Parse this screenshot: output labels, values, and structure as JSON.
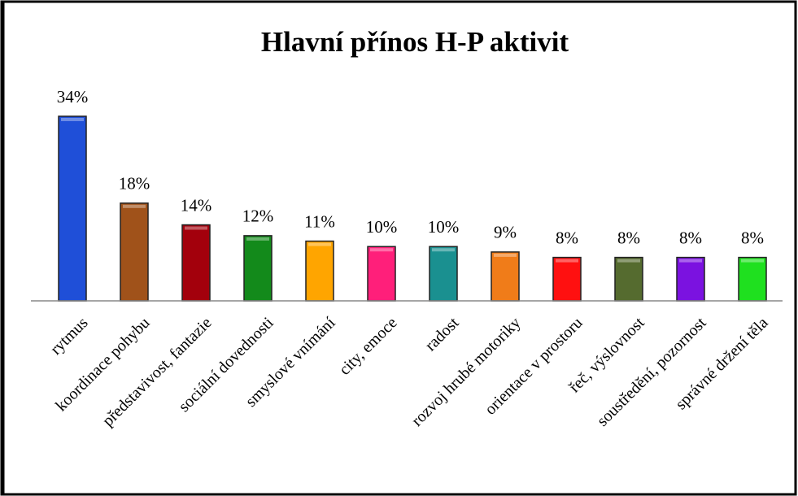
{
  "chart_data": {
    "type": "bar",
    "title": "Hlavní přínos H-P aktivit",
    "categories": [
      "rytmus",
      "koordinace pohybu",
      "představivost, fantazie",
      "sociální dovednosti",
      "smyslové vnímání",
      "city, emoce",
      "radost",
      "rozvoj hrubé motoriky",
      "orientace v prostoru",
      "řeč, výslovnost",
      "soustředění, pozornost",
      "správné držení těla"
    ],
    "values": [
      34,
      18,
      14,
      12,
      11,
      10,
      10,
      9,
      8,
      8,
      8,
      8
    ],
    "value_labels": [
      "34%",
      "18%",
      "14%",
      "12%",
      "11%",
      "10%",
      "10%",
      "9%",
      "8%",
      "8%",
      "8%",
      "8%"
    ],
    "colors": [
      "#1f4fd8",
      "#a0521a",
      "#a3000c",
      "#138a1b",
      "#ffa500",
      "#ff1f7a",
      "#1a9090",
      "#f07c19",
      "#ff1010",
      "#556b2f",
      "#7b12e0",
      "#1fe01f"
    ],
    "grid": false
  }
}
